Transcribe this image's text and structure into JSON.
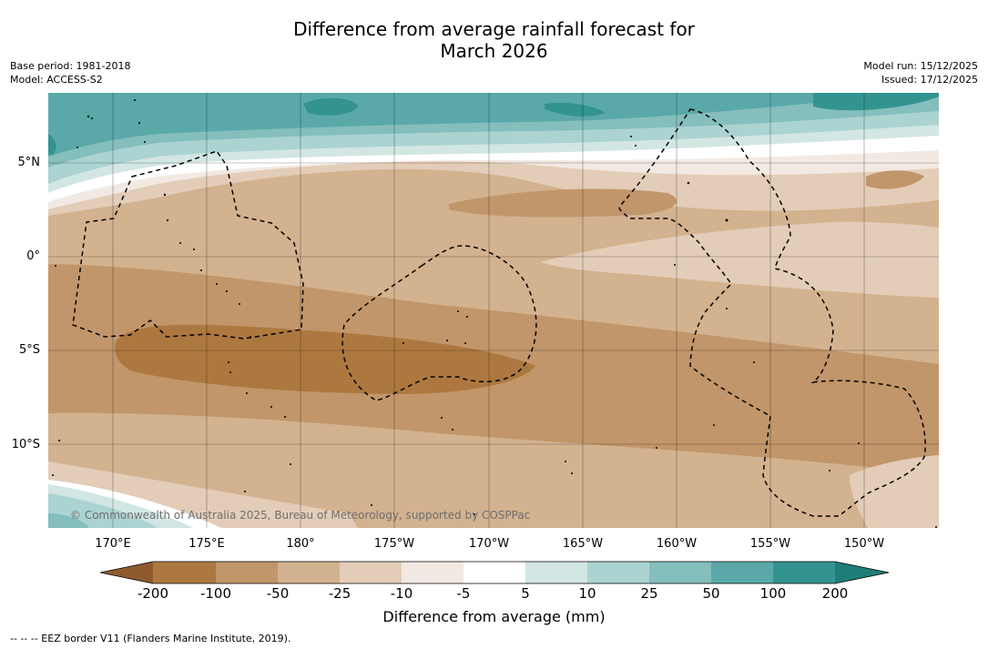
{
  "title": "Difference from average rainfall forecast for\nMarch 2026",
  "base_period": "Base period: 1981-2018",
  "model": "Model: ACCESS-S2",
  "model_run": "Model run: 15/12/2025",
  "issued": "Issued: 17/12/2025",
  "copyright": "© Commonwealth of Australia 2025, Bureau of Meteorology, supported by COSPPac",
  "lat_labels": [
    "5°N",
    "0°",
    "5°S",
    "10°S"
  ],
  "lon_labels": [
    "170°E",
    "175°E",
    "180°",
    "175°W",
    "170°W",
    "165°W",
    "160°W",
    "155°W",
    "150°W"
  ],
  "colorbar": {
    "ticks": [
      "-200",
      "-100",
      "-50",
      "-25",
      "-10",
      "-5",
      "5",
      "10",
      "25",
      "50",
      "100",
      "200"
    ],
    "colors": [
      "#8f5b2e",
      "#ad783f",
      "#c1966a",
      "#d3b28f",
      "#e3cdb8",
      "#f2e9e2",
      "#ffffff",
      "#d2e6e4",
      "#abd3d1",
      "#84bebd",
      "#5aa9a8",
      "#33948f",
      "#1f7d78"
    ],
    "label": "Difference from average (mm)"
  },
  "eez_note": "--  --  -- EEZ border V11 (Flanders Marine Institute, 2019)."
}
